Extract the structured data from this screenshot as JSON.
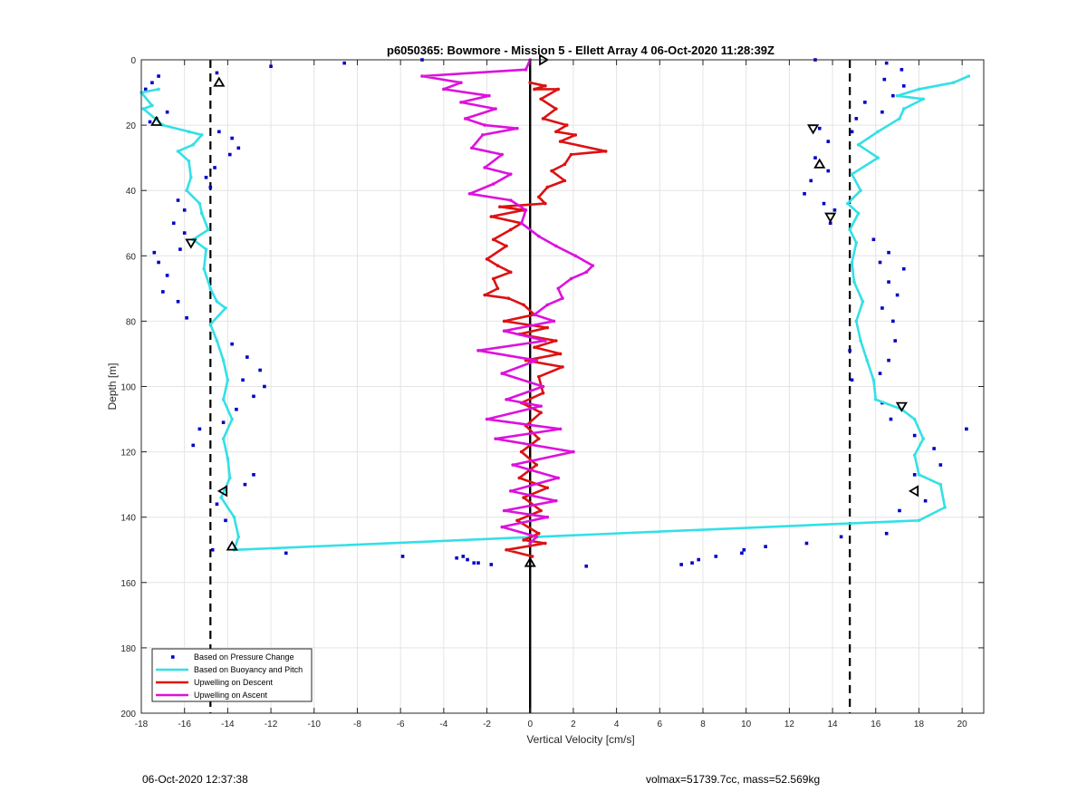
{
  "figure": {
    "footer_left": "06-Oct-2020 12:37:38",
    "footer_right": "volmax=51739.7cc, mass=52.569kg"
  },
  "chart_data": {
    "type": "line",
    "title": "p6050365: Bowmore - Mission 5 - Ellett Array 4 06-Oct-2020 11:28:39Z",
    "xlabel": "Vertical Velocity [cm/s]",
    "ylabel": "Depth [m]",
    "xlim": [
      -18,
      21
    ],
    "ylim": [
      0,
      200
    ],
    "y_reversed": true,
    "grid": true,
    "xticks": [
      -18,
      -16,
      -14,
      -12,
      -10,
      -8,
      -6,
      -4,
      -2,
      0,
      2,
      4,
      6,
      8,
      10,
      12,
      14,
      16,
      18,
      20
    ],
    "yticks": [
      0,
      20,
      40,
      60,
      80,
      100,
      120,
      140,
      160,
      180,
      200
    ],
    "legend_position": "bottom-left",
    "reference_lines": [
      {
        "x": -14.8,
        "style": "dashed",
        "color": "#000000"
      },
      {
        "x": 14.8,
        "style": "dashed",
        "color": "#000000"
      },
      {
        "x": 0,
        "style": "solid",
        "color": "#000000"
      }
    ],
    "series": [
      {
        "name": "Based on Pressure Change",
        "kind": "scatter",
        "color": "#0000c8",
        "points": [
          [
            -17.2,
            5
          ],
          [
            -17.5,
            7
          ],
          [
            -17.8,
            9
          ],
          [
            -16.8,
            16
          ],
          [
            -17.3,
            18
          ],
          [
            -17.6,
            19
          ],
          [
            -14.5,
            4
          ],
          [
            -12,
            2
          ],
          [
            -8.6,
            1
          ],
          [
            -5,
            0
          ],
          [
            13.2,
            0
          ],
          [
            16.5,
            1
          ],
          [
            17.2,
            3
          ],
          [
            16.4,
            6
          ],
          [
            17.3,
            8
          ],
          [
            16.8,
            11
          ],
          [
            15.5,
            13
          ],
          [
            16.3,
            16
          ],
          [
            15.1,
            18
          ],
          [
            14.9,
            22
          ],
          [
            -14.4,
            22
          ],
          [
            -13.8,
            24
          ],
          [
            -13.5,
            27
          ],
          [
            -13.9,
            29
          ],
          [
            -14.6,
            33
          ],
          [
            -15,
            36
          ],
          [
            -14.8,
            39
          ],
          [
            -16.3,
            43
          ],
          [
            -16,
            46
          ],
          [
            -16.5,
            50
          ],
          [
            -16,
            53
          ],
          [
            -16.2,
            58
          ],
          [
            -17.4,
            59
          ],
          [
            -17.2,
            62
          ],
          [
            -16.8,
            66
          ],
          [
            -17,
            71
          ],
          [
            -16.3,
            74
          ],
          [
            -15.9,
            79
          ],
          [
            13.4,
            21
          ],
          [
            13.8,
            25
          ],
          [
            13.2,
            30
          ],
          [
            13.8,
            34
          ],
          [
            13,
            37
          ],
          [
            12.7,
            41
          ],
          [
            13.6,
            44
          ],
          [
            14.1,
            46
          ],
          [
            13.9,
            50
          ],
          [
            15.9,
            55
          ],
          [
            16.6,
            59
          ],
          [
            16.2,
            62
          ],
          [
            17.3,
            64
          ],
          [
            16.6,
            68
          ],
          [
            17,
            72
          ],
          [
            16.3,
            76
          ],
          [
            16.8,
            80
          ],
          [
            16.9,
            86
          ],
          [
            14.8,
            89
          ],
          [
            16.6,
            92
          ],
          [
            16.2,
            96
          ],
          [
            14.9,
            98
          ],
          [
            16.3,
            105
          ],
          [
            -13.8,
            87
          ],
          [
            -13.1,
            91
          ],
          [
            -12.5,
            95
          ],
          [
            -13.3,
            98
          ],
          [
            -12.3,
            100
          ],
          [
            -12.8,
            103
          ],
          [
            -13.6,
            107
          ],
          [
            -14.2,
            111
          ],
          [
            -15.3,
            113
          ],
          [
            -15.6,
            118
          ],
          [
            -12.8,
            127
          ],
          [
            -13.2,
            130
          ],
          [
            -14.5,
            136
          ],
          [
            -14.1,
            141
          ],
          [
            -14.7,
            150
          ],
          [
            16.7,
            110
          ],
          [
            20.2,
            113
          ],
          [
            17.8,
            115
          ],
          [
            18.7,
            119
          ],
          [
            19,
            124
          ],
          [
            17.8,
            127
          ],
          [
            18.3,
            135
          ],
          [
            17.1,
            138
          ],
          [
            16.5,
            145
          ],
          [
            14.4,
            146
          ],
          [
            12.8,
            148
          ],
          [
            10.9,
            149
          ],
          [
            9.9,
            150
          ],
          [
            9.8,
            151
          ],
          [
            8.6,
            152
          ],
          [
            7.8,
            153
          ],
          [
            7.5,
            154
          ],
          [
            7,
            154.5
          ],
          [
            -11.3,
            151
          ],
          [
            -5.9,
            152
          ],
          [
            -3.1,
            152
          ],
          [
            -2.9,
            153
          ],
          [
            -2.6,
            154
          ],
          [
            -2.4,
            154
          ],
          [
            -1.8,
            154.5
          ],
          [
            -3.4,
            152.5
          ],
          [
            2.6,
            155
          ]
        ]
      },
      {
        "name": "Based on Buoyancy and Pitch",
        "kind": "line",
        "color": "#33e0e6",
        "points": [
          [
            -17.2,
            9
          ],
          [
            -18,
            10
          ],
          [
            -17.5,
            14
          ],
          [
            -17.9,
            15
          ],
          [
            -17,
            20
          ],
          [
            -15.8,
            22
          ],
          [
            -15.2,
            23
          ],
          [
            -15.6,
            26
          ],
          [
            -16.3,
            28
          ],
          [
            -15.8,
            31
          ],
          [
            -15.7,
            36
          ],
          [
            -15.9,
            40
          ],
          [
            -15.3,
            44
          ],
          [
            -15.2,
            47
          ],
          [
            -14.9,
            52
          ],
          [
            -15.6,
            55
          ],
          [
            -15,
            58
          ],
          [
            -15.1,
            64
          ],
          [
            -14.8,
            70
          ],
          [
            -14.5,
            74
          ],
          [
            -14.1,
            76
          ],
          [
            -14.8,
            81
          ],
          [
            -14.5,
            86
          ],
          [
            -14.2,
            92
          ],
          [
            -14,
            98
          ],
          [
            -14.2,
            104
          ],
          [
            -13.8,
            110
          ],
          [
            -14.2,
            116
          ],
          [
            -14,
            122
          ],
          [
            -13.9,
            128
          ],
          [
            -14.3,
            134
          ],
          [
            -13.7,
            140
          ],
          [
            -13.5,
            146
          ],
          [
            -13.7,
            150
          ],
          [
            18,
            141
          ],
          [
            19.2,
            137
          ],
          [
            19,
            130
          ],
          [
            18,
            127
          ],
          [
            17.8,
            121
          ],
          [
            18.2,
            116
          ],
          [
            17.8,
            110
          ],
          [
            17.2,
            107
          ],
          [
            16,
            104
          ],
          [
            15.9,
            98
          ],
          [
            15.6,
            92
          ],
          [
            15.3,
            86
          ],
          [
            15.1,
            80
          ],
          [
            15.4,
            74
          ],
          [
            15,
            68
          ],
          [
            14.9,
            62
          ],
          [
            15.1,
            56
          ],
          [
            14.8,
            52
          ],
          [
            15.2,
            47
          ],
          [
            14.7,
            44
          ],
          [
            15.3,
            40
          ],
          [
            14.9,
            35
          ],
          [
            16.1,
            30
          ],
          [
            15.2,
            26
          ],
          [
            16.1,
            22
          ],
          [
            17.1,
            18
          ],
          [
            17.3,
            15
          ],
          [
            18.2,
            12
          ],
          [
            17,
            11
          ],
          [
            18,
            9
          ],
          [
            19.6,
            7
          ],
          [
            20.3,
            5
          ]
        ]
      },
      {
        "name": "Upwelling on Descent",
        "kind": "line",
        "color": "#dd1111",
        "points": [
          [
            0,
            7
          ],
          [
            0.7,
            8
          ],
          [
            0.2,
            9
          ],
          [
            1.3,
            9
          ],
          [
            0.5,
            12
          ],
          [
            1.2,
            15
          ],
          [
            0.6,
            18
          ],
          [
            1.7,
            20
          ],
          [
            1.2,
            22
          ],
          [
            2.1,
            23
          ],
          [
            1.4,
            25
          ],
          [
            3.5,
            28
          ],
          [
            1.9,
            29
          ],
          [
            1.6,
            32
          ],
          [
            1,
            34
          ],
          [
            1.6,
            37
          ],
          [
            0.8,
            39
          ],
          [
            0.4,
            42
          ],
          [
            0.7,
            44
          ],
          [
            -1.4,
            45
          ],
          [
            -0.3,
            46
          ],
          [
            -1.8,
            48
          ],
          [
            -0.4,
            50
          ],
          [
            -0.9,
            52
          ],
          [
            -1.7,
            55
          ],
          [
            -1.1,
            57
          ],
          [
            -2,
            61
          ],
          [
            -1.5,
            63
          ],
          [
            -0.9,
            65
          ],
          [
            -1.7,
            67
          ],
          [
            -1.5,
            70
          ],
          [
            -2.1,
            72
          ],
          [
            -1,
            73
          ],
          [
            -0.3,
            75
          ],
          [
            0.2,
            78
          ],
          [
            -1.2,
            80
          ],
          [
            0.8,
            82
          ],
          [
            -0.5,
            84
          ],
          [
            1.2,
            86
          ],
          [
            0.2,
            88
          ],
          [
            1.4,
            90
          ],
          [
            -0.2,
            92
          ],
          [
            1.5,
            94
          ],
          [
            0.4,
            97
          ],
          [
            0.6,
            102
          ],
          [
            -0.4,
            105
          ],
          [
            0.5,
            108
          ],
          [
            -0.2,
            112
          ],
          [
            0.4,
            116
          ],
          [
            -0.4,
            120
          ],
          [
            0.3,
            124
          ],
          [
            -0.5,
            128
          ],
          [
            0.8,
            131
          ],
          [
            -0.3,
            134
          ],
          [
            0.5,
            138
          ],
          [
            -0.6,
            141
          ],
          [
            0.4,
            145
          ],
          [
            -0.3,
            147
          ],
          [
            0.7,
            148
          ],
          [
            -1.1,
            150
          ],
          [
            0.1,
            152
          ]
        ]
      },
      {
        "name": "Upwelling on Ascent",
        "kind": "line",
        "color": "#dd11dd",
        "points": [
          [
            0,
            0
          ],
          [
            -0.2,
            3
          ],
          [
            -5,
            5
          ],
          [
            -3.2,
            7
          ],
          [
            -4,
            9
          ],
          [
            -1.9,
            11
          ],
          [
            -3.2,
            13
          ],
          [
            -1.6,
            15
          ],
          [
            -3,
            18
          ],
          [
            -2.1,
            20
          ],
          [
            -0.6,
            21
          ],
          [
            -2.2,
            23
          ],
          [
            -2.7,
            27
          ],
          [
            -1.3,
            29
          ],
          [
            -2.1,
            33
          ],
          [
            -0.9,
            35
          ],
          [
            -1.7,
            38
          ],
          [
            -2.8,
            41
          ],
          [
            -0.9,
            43
          ],
          [
            -0.2,
            46
          ],
          [
            -0.4,
            50
          ],
          [
            0.4,
            54
          ],
          [
            1.2,
            57
          ],
          [
            2.1,
            60
          ],
          [
            2.9,
            63
          ],
          [
            2.6,
            65
          ],
          [
            1.9,
            67
          ],
          [
            1.3,
            70
          ],
          [
            1.5,
            73
          ],
          [
            0.8,
            75
          ],
          [
            0.2,
            78
          ],
          [
            1.1,
            80
          ],
          [
            -1.2,
            83
          ],
          [
            0.7,
            86
          ],
          [
            -2.4,
            89
          ],
          [
            0.3,
            92
          ],
          [
            -1.3,
            96
          ],
          [
            0.6,
            100
          ],
          [
            -1.1,
            104
          ],
          [
            0.5,
            106
          ],
          [
            -2,
            110
          ],
          [
            1.4,
            113
          ],
          [
            -1.6,
            116
          ],
          [
            2,
            120
          ],
          [
            -0.8,
            124
          ],
          [
            1.3,
            128
          ],
          [
            -0.9,
            132
          ],
          [
            1.2,
            135
          ],
          [
            -1.2,
            138
          ],
          [
            0.8,
            140
          ],
          [
            -1.3,
            143
          ],
          [
            0.3,
            146
          ],
          [
            0,
            148
          ]
        ]
      },
      {
        "name": "Markers",
        "kind": "markers",
        "color": "#000000",
        "points": [
          [
            -14.4,
            7,
            "up"
          ],
          [
            -17.3,
            19,
            "up"
          ],
          [
            -15.7,
            56,
            "down"
          ],
          [
            -14.2,
            132,
            "left"
          ],
          [
            -13.8,
            149,
            "up"
          ],
          [
            0.6,
            0,
            "right"
          ],
          [
            13.1,
            21,
            "down"
          ],
          [
            13.4,
            32,
            "up"
          ],
          [
            13.9,
            48,
            "down"
          ],
          [
            17.2,
            106,
            "down"
          ],
          [
            17.8,
            132,
            "left"
          ],
          [
            0,
            154,
            "up"
          ]
        ]
      }
    ]
  }
}
